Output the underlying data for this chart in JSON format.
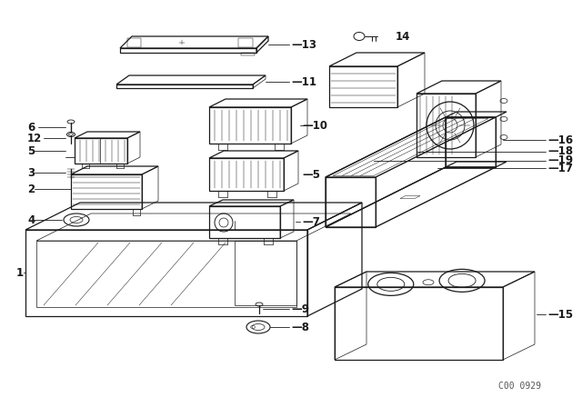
{
  "background_color": "#ffffff",
  "line_color": "#1a1a1a",
  "watermark": "C00 0929",
  "lw_main": 0.9,
  "lw_light": 0.5,
  "lw_thin": 0.35
}
